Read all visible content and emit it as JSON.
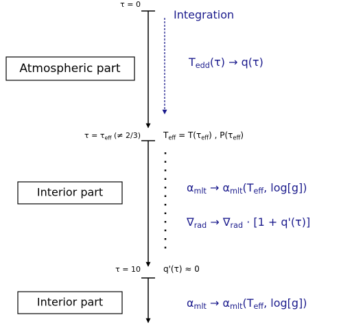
{
  "labels": {
    "tau0": [
      "τ = 0"
    ],
    "tau_eff": [
      "τ = τ",
      "eff",
      " (≠ 2/3)"
    ],
    "tau10": [
      "τ = 10"
    ],
    "integration": [
      "Integration"
    ],
    "tedd": [
      "T",
      "edd",
      "(τ) → q(τ)"
    ],
    "teff": [
      "T",
      "eff",
      " = T(τ",
      "eff",
      ") , P(τ",
      "eff",
      ")"
    ],
    "alpha1": [
      "α",
      "mlt",
      " → α",
      "mlt",
      "(T",
      "eff",
      ", log[g])"
    ],
    "nabla": [
      "∇",
      "rad",
      " → ∇",
      "rad",
      " · [1 + q'(τ)]"
    ],
    "q0": [
      "q'(τ) ≈ 0"
    ],
    "alpha2": [
      "α",
      "mlt",
      " → α",
      "mlt",
      "(T",
      "eff",
      ", log[g])"
    ]
  },
  "boxes": [
    "Atmospheric part",
    "Interior part",
    "Interior part"
  ]
}
